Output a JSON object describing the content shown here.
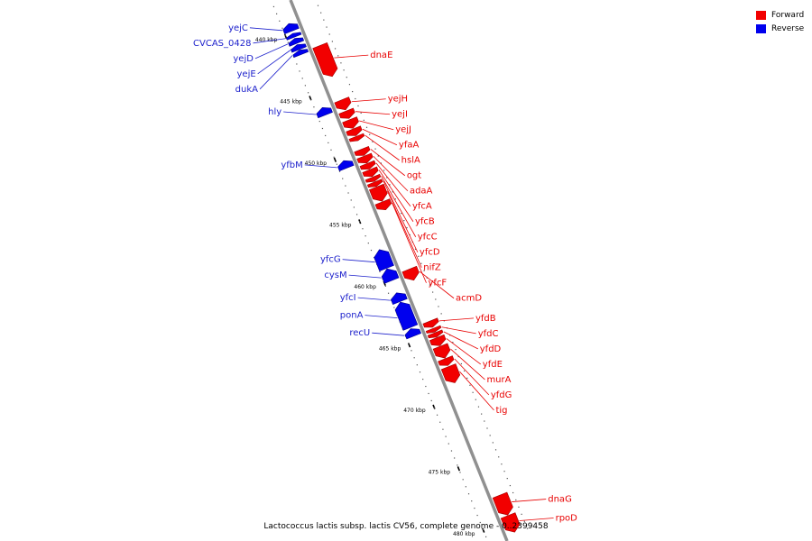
{
  "colors": {
    "forward": "#f20000",
    "reverse": "#0000ee",
    "forward_label": "#e80000",
    "reverse_label": "#1e22cc",
    "backbone": "#909090"
  },
  "legend": {
    "forward_label": "Forward",
    "reverse_label": "Reverse"
  },
  "caption": "Lactococcus lactis subsp. lactis CV56, complete genome - 0..2399458",
  "map": {
    "ticks": [
      {
        "pos": 440,
        "label": "440 kbp"
      },
      {
        "pos": 445,
        "label": "445 kbp"
      },
      {
        "pos": 450,
        "label": "450 kbp"
      },
      {
        "pos": 455,
        "label": "455 kbp"
      },
      {
        "pos": 460,
        "label": "460 kbp"
      },
      {
        "pos": 465,
        "label": "465 kbp"
      },
      {
        "pos": 470,
        "label": "470 kbp"
      },
      {
        "pos": 475,
        "label": "475 kbp"
      },
      {
        "pos": 480,
        "label": "480 kbp"
      }
    ],
    "genes": [
      {
        "name": "yejC",
        "strand": "reverse",
        "start": 439.2,
        "end": 439.8
      },
      {
        "name": "CVCAS_0428",
        "strand": "reverse",
        "start": 440.0,
        "end": 440.3
      },
      {
        "name": "yejD",
        "strand": "reverse",
        "start": 440.4,
        "end": 440.8
      },
      {
        "name": "yejE",
        "strand": "reverse",
        "start": 440.9,
        "end": 441.3
      },
      {
        "name": "dukA",
        "strand": "reverse",
        "start": 441.35,
        "end": 441.7
      },
      {
        "name": "dnaE",
        "strand": "forward",
        "start": 441.6,
        "end": 444.1
      },
      {
        "name": "yejH",
        "strand": "forward",
        "start": 446.0,
        "end": 446.8
      },
      {
        "name": "yejI",
        "strand": "forward",
        "start": 446.9,
        "end": 447.5
      },
      {
        "name": "yejJ",
        "strand": "forward",
        "start": 447.6,
        "end": 448.3
      },
      {
        "name": "yfaA",
        "strand": "forward",
        "start": 448.35,
        "end": 448.9
      },
      {
        "name": "hslA",
        "strand": "forward",
        "start": 448.95,
        "end": 449.3
      },
      {
        "name": "hly",
        "strand": "reverse",
        "start": 446.0,
        "end": 446.6
      },
      {
        "name": "ogt",
        "strand": "forward",
        "start": 450.0,
        "end": 450.5
      },
      {
        "name": "adaA",
        "strand": "forward",
        "start": 450.55,
        "end": 451.1
      },
      {
        "name": "yfcA",
        "strand": "forward",
        "start": 451.15,
        "end": 451.6
      },
      {
        "name": "yfcB",
        "strand": "forward",
        "start": 451.65,
        "end": 452.2
      },
      {
        "name": "yfcC",
        "strand": "forward",
        "start": 452.25,
        "end": 452.6
      },
      {
        "name": "yfcD",
        "strand": "forward",
        "start": 452.65,
        "end": 453.0
      },
      {
        "name": "nifZ",
        "strand": "forward",
        "start": 453.05,
        "end": 454.2
      },
      {
        "name": "yfcF",
        "strand": "forward",
        "start": 454.25,
        "end": 454.9
      },
      {
        "name": "yfbM",
        "strand": "reverse",
        "start": 450.3,
        "end": 450.9
      },
      {
        "name": "yfcG",
        "strand": "reverse",
        "start": 457.5,
        "end": 459.0
      },
      {
        "name": "cysM",
        "strand": "reverse",
        "start": 459.05,
        "end": 460.0
      },
      {
        "name": "acmD",
        "strand": "forward",
        "start": 459.7,
        "end": 460.6
      },
      {
        "name": "yfcI",
        "strand": "reverse",
        "start": 461.0,
        "end": 461.7
      },
      {
        "name": "ponA",
        "strand": "reverse",
        "start": 461.75,
        "end": 463.8
      },
      {
        "name": "recU",
        "strand": "reverse",
        "start": 463.9,
        "end": 464.5
      },
      {
        "name": "yfdB",
        "strand": "forward",
        "start": 463.9,
        "end": 464.4
      },
      {
        "name": "yfdC",
        "strand": "forward",
        "start": 464.5,
        "end": 464.8
      },
      {
        "name": "yfdD",
        "strand": "forward",
        "start": 464.85,
        "end": 465.2
      },
      {
        "name": "yfdE",
        "strand": "forward",
        "start": 465.25,
        "end": 465.9
      },
      {
        "name": "murA",
        "strand": "forward",
        "start": 465.95,
        "end": 466.9
      },
      {
        "name": "yfdG",
        "strand": "forward",
        "start": 466.95,
        "end": 467.5
      },
      {
        "name": "tig",
        "strand": "forward",
        "start": 467.6,
        "end": 468.9
      },
      {
        "name": "dnaG",
        "strand": "forward",
        "start": 478.0,
        "end": 479.6
      },
      {
        "name": "rpoD",
        "strand": "forward",
        "start": 479.65,
        "end": 481.0
      }
    ]
  }
}
